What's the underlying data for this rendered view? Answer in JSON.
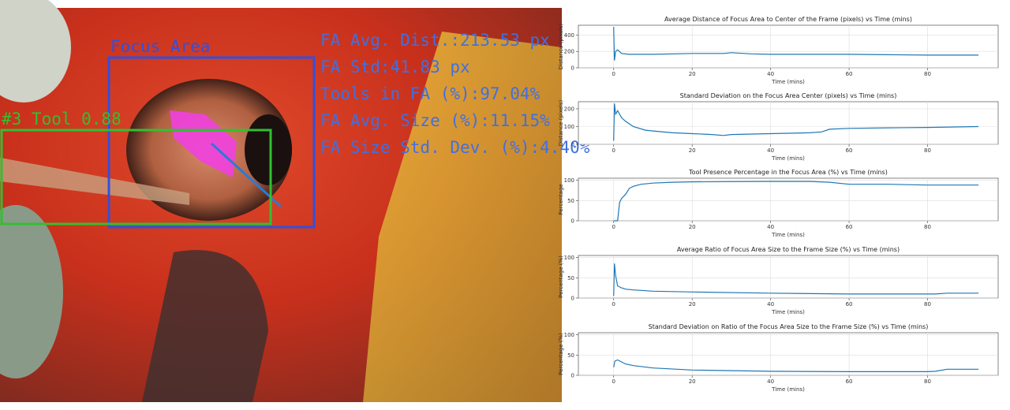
{
  "image_overlay": {
    "focus_label": "Focus Area",
    "tool_label": "#3 Tool 0.88",
    "stats": [
      "FA Avg. Dist.:213.53 px",
      "FA Std:41.83 px",
      "Tools in FA (%):97.04%",
      "FA Avg. Size (%):11.15%",
      "FA Size Std. Dev. (%):4.40%"
    ]
  },
  "chart_data": [
    {
      "type": "line",
      "title": "Average Distance of Focus Area to Center of the Frame (pixels) vs Time (mins)",
      "xlabel": "Time (mins)",
      "ylabel": "Distance (pixels)",
      "color": "#1f77b4",
      "grid": true,
      "x": [
        0,
        0.2,
        0.5,
        1,
        2,
        4,
        10,
        20,
        28,
        30,
        35,
        40,
        50,
        60,
        70,
        80,
        93
      ],
      "values": [
        500,
        90,
        200,
        220,
        175,
        165,
        165,
        175,
        175,
        185,
        170,
        165,
        165,
        165,
        160,
        155,
        155
      ],
      "xlim": [
        -9,
        98
      ],
      "ylim": [
        0,
        520
      ],
      "xticks": [
        0,
        20,
        40,
        60,
        80
      ],
      "yticks": [
        0,
        200,
        400
      ]
    },
    {
      "type": "line",
      "title": "Standard Deviation on the Focus Area Center (pixels) vs Time (mins)",
      "xlabel": "Time (mins)",
      "ylabel": "Distance (pixels)",
      "color": "#1f77b4",
      "grid": true,
      "x": [
        0,
        0.2,
        0.5,
        1,
        2,
        3,
        5,
        8,
        10,
        15,
        20,
        25,
        28,
        30,
        40,
        50,
        53,
        55,
        60,
        70,
        80,
        93
      ],
      "values": [
        20,
        230,
        170,
        190,
        150,
        130,
        100,
        80,
        75,
        65,
        60,
        55,
        50,
        55,
        60,
        65,
        70,
        85,
        90,
        93,
        95,
        100
      ],
      "xlim": [
        -9,
        98
      ],
      "ylim": [
        0,
        240
      ],
      "xticks": [
        0,
        20,
        40,
        60,
        80
      ],
      "yticks": [
        0,
        100,
        200
      ]
    },
    {
      "type": "line",
      "title": "Tool Presence Percentage in the Focus Area (%) vs Time (mins)",
      "xlabel": "Time (mins)",
      "ylabel": "Percentage",
      "color": "#1f77b4",
      "grid": true,
      "x": [
        0,
        1,
        1.5,
        2,
        3,
        4,
        5,
        7,
        10,
        15,
        20,
        40,
        50,
        55,
        60,
        70,
        80,
        93
      ],
      "values": [
        0,
        0,
        45,
        55,
        65,
        80,
        85,
        90,
        93,
        95,
        96,
        97,
        97,
        95,
        90,
        90,
        88,
        88
      ],
      "xlim": [
        -9,
        98
      ],
      "ylim": [
        0,
        105
      ],
      "xticks": [
        0,
        20,
        40,
        60,
        80
      ],
      "yticks": [
        0,
        50,
        100
      ]
    },
    {
      "type": "line",
      "title": "Average Ratio of Focus Area Size to the Frame Size (%) vs Time (mins)",
      "xlabel": "Time (mins)",
      "ylabel": "Percentage (%)",
      "color": "#1f77b4",
      "grid": true,
      "x": [
        0,
        0.2,
        0.5,
        1,
        2,
        3,
        5,
        10,
        20,
        40,
        60,
        80,
        82,
        85,
        93
      ],
      "values": [
        5,
        85,
        55,
        30,
        25,
        22,
        20,
        17,
        15,
        12,
        10,
        10,
        10,
        12,
        12
      ],
      "xlim": [
        -9,
        98
      ],
      "ylim": [
        0,
        105
      ],
      "xticks": [
        0,
        20,
        40,
        60,
        80
      ],
      "yticks": [
        0,
        50,
        100
      ]
    },
    {
      "type": "line",
      "title": "Standard Deviation on Ratio of the Focus Area Size to the Frame Size (%) vs Time (mins)",
      "xlabel": "Time (mins)",
      "ylabel": "Percentage (%)",
      "color": "#1f77b4",
      "grid": true,
      "x": [
        0,
        0.3,
        1,
        2,
        3,
        5,
        10,
        20,
        40,
        60,
        80,
        82,
        85,
        93
      ],
      "values": [
        20,
        35,
        38,
        33,
        28,
        24,
        18,
        13,
        10,
        9,
        9,
        10,
        15,
        15
      ],
      "xlim": [
        -9,
        98
      ],
      "ylim": [
        0,
        105
      ],
      "xticks": [
        0,
        20,
        40,
        60,
        80
      ],
      "yticks": [
        0,
        50,
        100
      ]
    }
  ]
}
